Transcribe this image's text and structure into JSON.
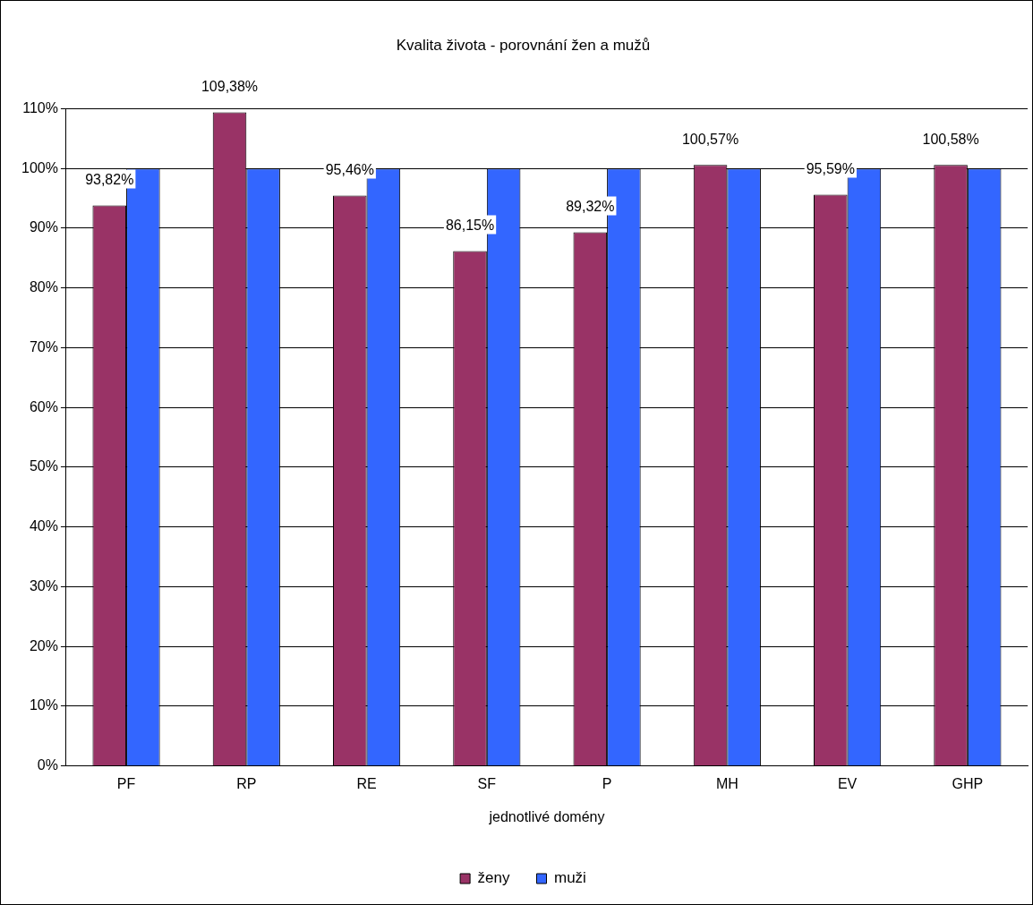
{
  "chart_data": {
    "type": "bar",
    "title": "Kvalita života - porovnání žen a mužů",
    "xlabel": "jednotlivé domény",
    "categories": [
      "PF",
      "RP",
      "RE",
      "SF",
      "P",
      "MH",
      "EV",
      "GHP"
    ],
    "series": [
      {
        "name": "ženy",
        "color": "#993366",
        "values": [
          93.82,
          109.38,
          95.46,
          86.15,
          89.32,
          100.57,
          95.59,
          100.58
        ],
        "value_labels": [
          "93,82%",
          "109,38%",
          "95,46%",
          "86,15%",
          "89,32%",
          "100,57%",
          "95,59%",
          "100,58%"
        ]
      },
      {
        "name": "muži",
        "color": "#3366ff",
        "values": [
          100,
          100,
          100,
          100,
          100,
          100,
          100,
          100
        ]
      }
    ],
    "ylim": [
      0,
      110
    ],
    "yticks": [
      {
        "value": 0,
        "label": "0%"
      },
      {
        "value": 10,
        "label": "10%"
      },
      {
        "value": 20,
        "label": "20%"
      },
      {
        "value": 30,
        "label": "30%"
      },
      {
        "value": 40,
        "label": "40%"
      },
      {
        "value": 50,
        "label": "50%"
      },
      {
        "value": 60,
        "label": "60%"
      },
      {
        "value": 70,
        "label": "70%"
      },
      {
        "value": 80,
        "label": "80%"
      },
      {
        "value": 90,
        "label": "90%"
      },
      {
        "value": 100,
        "label": "100%"
      },
      {
        "value": 110,
        "label": "110%"
      }
    ],
    "grid": "y",
    "legend": "bottom"
  }
}
